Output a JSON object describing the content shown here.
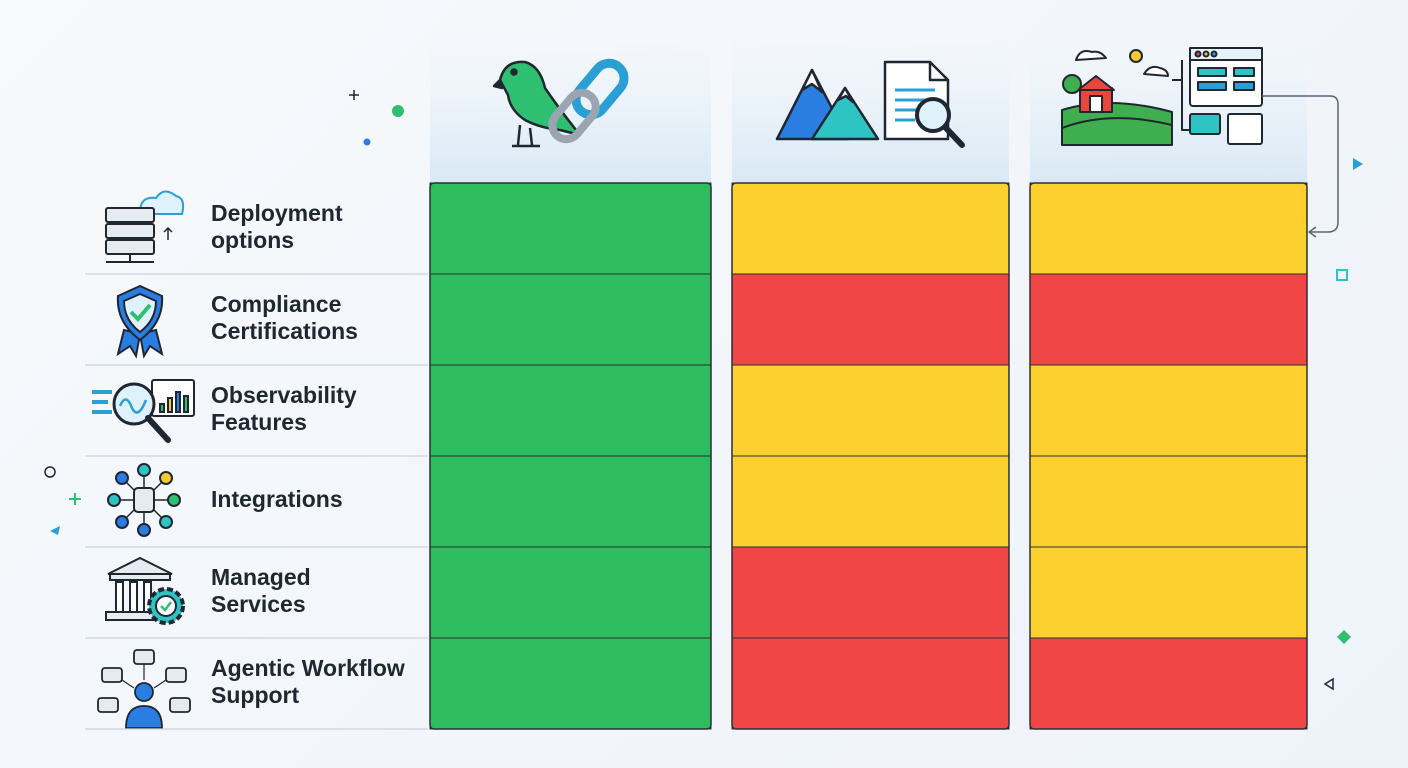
{
  "table": {
    "rows": [
      {
        "lines": [
          "Deployment",
          "options"
        ],
        "cells": [
          "#2dbd5e",
          "#fcd02f",
          "#fcd02f"
        ]
      },
      {
        "lines": [
          "Compliance",
          "Certifications"
        ],
        "cells": [
          "#2dbd5e",
          "#f04646",
          "#f04646"
        ]
      },
      {
        "lines": [
          "Observability",
          "Features"
        ],
        "cells": [
          "#2dbd5e",
          "#fcd02f",
          "#fcd02f"
        ]
      },
      {
        "lines": [
          "Integrations"
        ],
        "cells": [
          "#2dbd5e",
          "#fcd02f",
          "#fcd02f"
        ]
      },
      {
        "lines": [
          "Managed",
          "Services"
        ],
        "cells": [
          "#2dbd5e",
          "#f04646",
          "#fcd02f"
        ]
      },
      {
        "lines": [
          "Agentic Workflow",
          "Support"
        ],
        "cells": [
          "#2dbd5e",
          "#f04646",
          "#f04646"
        ]
      }
    ]
  }
}
